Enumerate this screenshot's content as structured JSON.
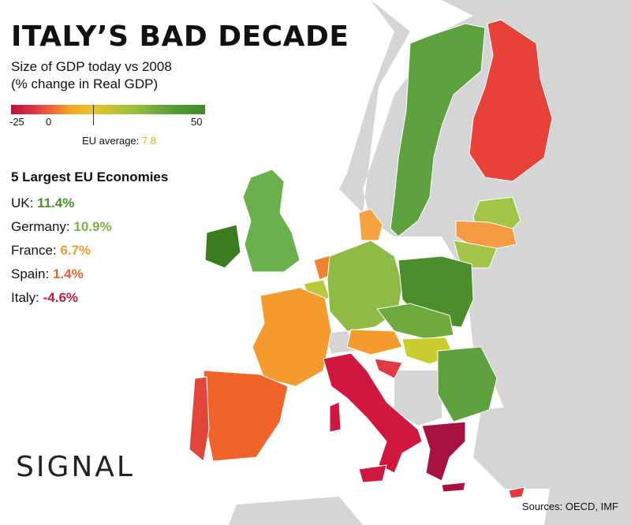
{
  "header": {
    "title": "ITALY’S BAD DECADE",
    "subtitle_line1": "Size of GDP today vs 2008",
    "subtitle_line2": "(% change in Real GDP)"
  },
  "legend": {
    "min_label": "-25",
    "zero_label": "0",
    "max_label": "50",
    "eu_average_label": "EU average:",
    "eu_average_value": "7.8"
  },
  "largest_economies": {
    "heading": "5 Largest EU Economies",
    "items": [
      {
        "country": "UK:",
        "value": "11.4%",
        "color": "#4a8f2a"
      },
      {
        "country": "Germany:",
        "value": "10.9%",
        "color": "#7cb342"
      },
      {
        "country": "France:",
        "value": "6.7%",
        "color": "#f59b2d"
      },
      {
        "country": "Spain:",
        "value": "1.4%",
        "color": "#f0642a"
      },
      {
        "country": "Italy:",
        "value": "-4.6%",
        "color": "#d0173d"
      }
    ]
  },
  "brand": {
    "logo_text": "SIGNAL"
  },
  "footer": {
    "sources": "Sources: OECD, IMF"
  },
  "colors": {
    "land_non_eu": "#d5d5d5",
    "sea": "#ffffff",
    "ireland": "#3b7d1e",
    "uk": "#6ab04c",
    "sweden": "#5ea23f",
    "finland": "#e8413a",
    "estonia_latvia": "#a3c547",
    "lithuania": "#f59b44",
    "denmark": "#f5a340",
    "netherlands": "#f0842e",
    "belgium": "#b8c93a",
    "germany": "#8fba43",
    "poland": "#4b8f2d",
    "czech_slovakia": "#6fab3c",
    "austria": "#f59b2d",
    "hungary": "#c9cd30",
    "romania_bulgaria": "#5ea23f",
    "france": "#f59b2d",
    "spain": "#f0642a",
    "portugal": "#e2463a",
    "italy": "#d0173d",
    "croatia": "#e23a45",
    "greece": "#a8123e",
    "cyprus": "#e8383f"
  }
}
